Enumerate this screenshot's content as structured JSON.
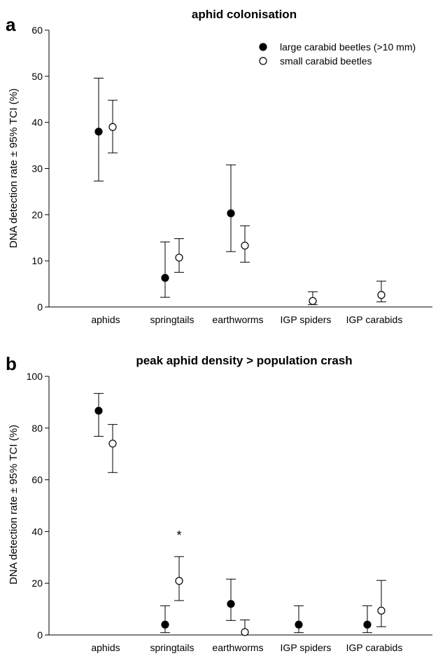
{
  "chart_data": [
    {
      "type": "scatter",
      "panel": "a",
      "title": "aphid colonisation",
      "xlabel": "",
      "ylabel": "DNA detection rate ± 95% TCI (%)",
      "ylim": [
        0,
        60
      ],
      "yticks": [
        0,
        10,
        20,
        30,
        40,
        50,
        60
      ],
      "categories": [
        "aphids",
        "springtails",
        "earthworms",
        "IGP spiders",
        "IGP carabids"
      ],
      "legend_position": "top-right",
      "series": [
        {
          "name": "large carabid beetles (>10 mm)",
          "marker": "filled",
          "values": [
            38.0,
            6.3,
            20.3,
            null,
            null
          ],
          "lower": [
            27.3,
            2.1,
            12.0,
            null,
            null
          ],
          "upper": [
            49.6,
            14.1,
            30.8,
            null,
            null
          ]
        },
        {
          "name": "small carabid beetles",
          "marker": "open",
          "values": [
            39.0,
            10.7,
            13.3,
            1.3,
            2.6
          ],
          "lower": [
            33.4,
            7.5,
            9.7,
            0.5,
            1.1
          ],
          "upper": [
            44.8,
            14.8,
            17.6,
            3.3,
            5.6
          ]
        }
      ],
      "annotations": []
    },
    {
      "type": "scatter",
      "panel": "b",
      "title": "peak aphid density > population crash",
      "xlabel": "",
      "ylabel": "DNA detection rate ± 95% TCI (%)",
      "ylim": [
        0,
        100
      ],
      "yticks": [
        0,
        20,
        40,
        60,
        80,
        100
      ],
      "categories": [
        "aphids",
        "springtails",
        "earthworms",
        "IGP spiders",
        "IGP carabids"
      ],
      "series": [
        {
          "name": "large carabid beetles (>10 mm)",
          "marker": "filled",
          "values": [
            86.7,
            4.0,
            12.0,
            4.0,
            4.0
          ],
          "lower": [
            76.8,
            0.9,
            5.6,
            0.9,
            0.9
          ],
          "upper": [
            93.4,
            11.3,
            21.6,
            11.3,
            11.3
          ]
        },
        {
          "name": "small carabid beetles",
          "marker": "open",
          "values": [
            74.0,
            null,
            1.1,
            null,
            9.4
          ],
          "lower": [
            62.8,
            null,
            0.0,
            null,
            3.2
          ],
          "upper": [
            81.4,
            null,
            5.8,
            null,
            21.1
          ]
        },
        {
          "name": "small carabid beetles",
          "marker": "open",
          "values": [
            null,
            20.9,
            null,
            null,
            null
          ],
          "lower": [
            null,
            13.3,
            null,
            null,
            null
          ],
          "upper": [
            null,
            30.3,
            null,
            null,
            null
          ]
        }
      ],
      "annotations": [
        {
          "text": "*",
          "category": "springtails",
          "y": 38.5
        }
      ]
    }
  ]
}
